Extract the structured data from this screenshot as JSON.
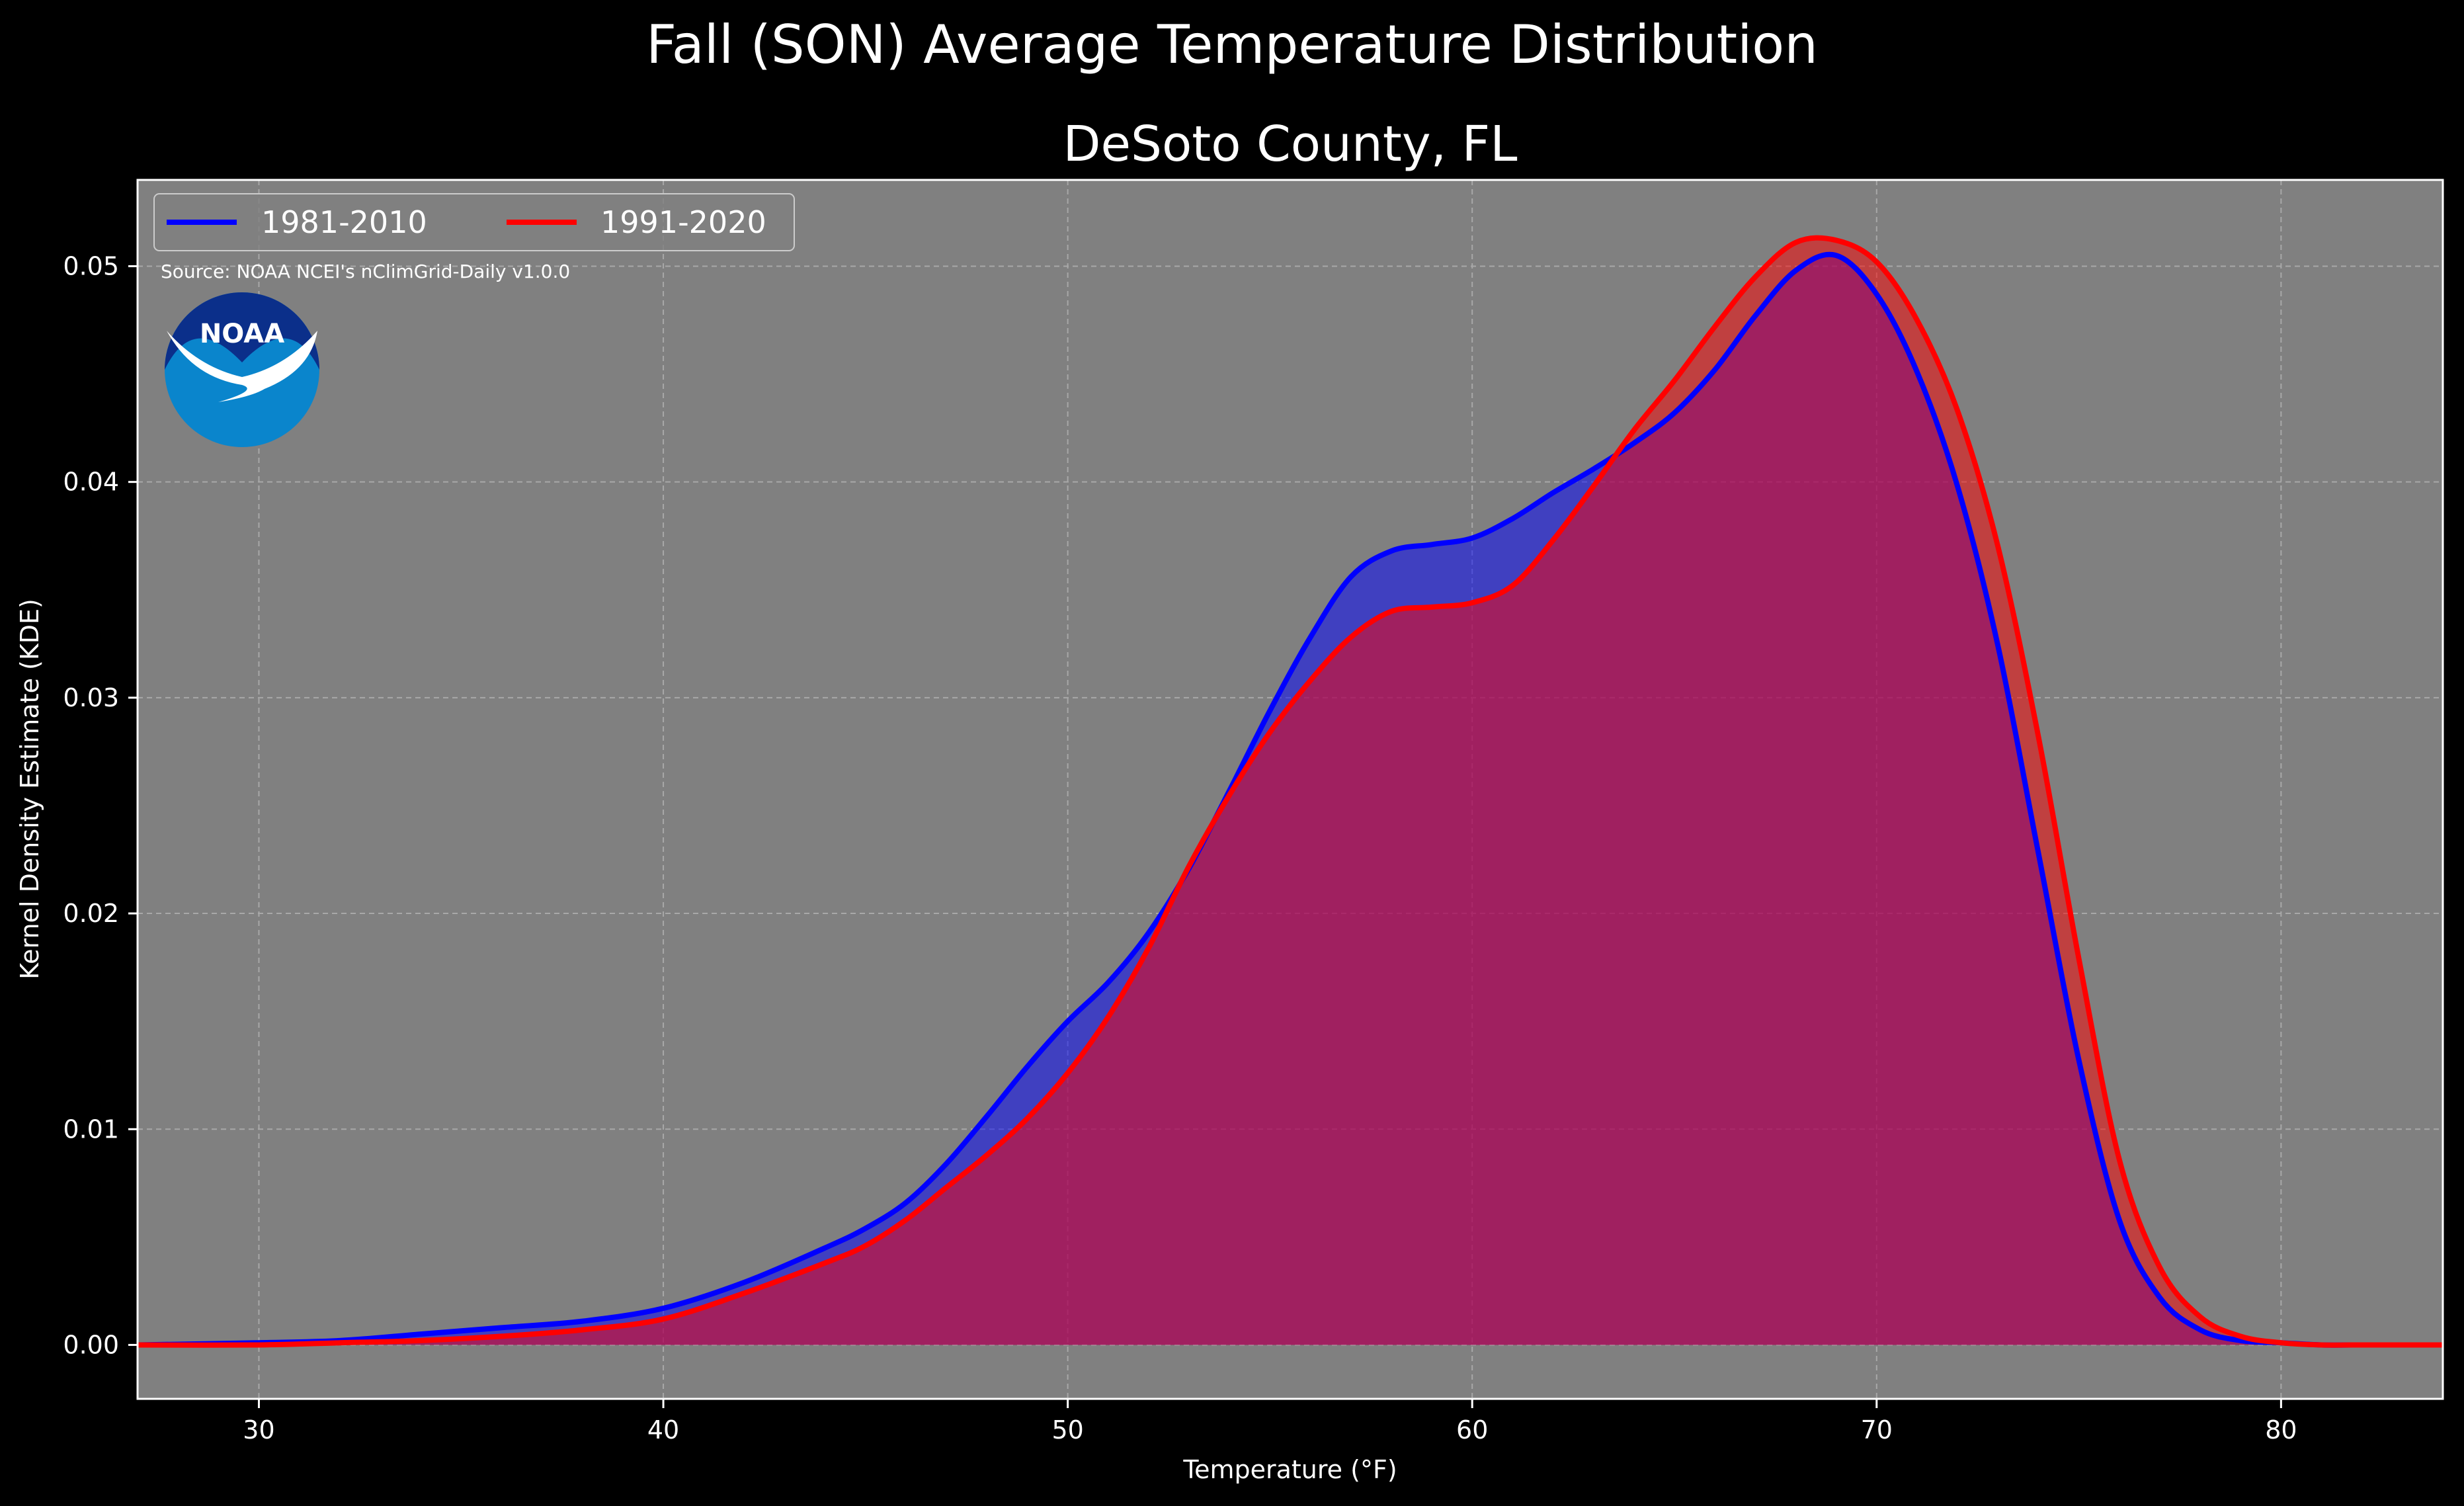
{
  "chart_data": {
    "type": "area",
    "suptitle": "Fall (SON) Average Temperature Distribution",
    "title": "DeSoto County, FL",
    "xlabel": "Temperature (°F)",
    "ylabel": "Kernel Density Estimate (KDE)",
    "xlim": [
      27,
      84
    ],
    "ylim": [
      -0.0025,
      0.054
    ],
    "xticks": [
      "30",
      "40",
      "50",
      "60",
      "70",
      "80"
    ],
    "yticks": [
      "0.00",
      "0.01",
      "0.02",
      "0.03",
      "0.04",
      "0.05"
    ],
    "grid": true,
    "legend_position": "top-left",
    "annotation": "Source: NOAA NCEI's nClimGrid-Daily v1.0.0",
    "logo": {
      "text": "NOAA",
      "icon": "noaa-logo"
    },
    "colors": {
      "figure_background": "#000000",
      "plot_background": "#808080",
      "grid": "#a8a8a8"
    },
    "series": [
      {
        "name": "1981-2010",
        "color": "#0000ff",
        "fill": "rgba(0,0,255,0.5)",
        "x": [
          27,
          30,
          32,
          34,
          36,
          38,
          40,
          42,
          44,
          45,
          46,
          47,
          48,
          49,
          50,
          51,
          52,
          53,
          54,
          55,
          56,
          57,
          58,
          59,
          60,
          61,
          62,
          63,
          64,
          65,
          66,
          67,
          68,
          69,
          70,
          71,
          72,
          73,
          74,
          75,
          76,
          77,
          78,
          79,
          80,
          81,
          82,
          84
        ],
        "y": [
          0.0,
          0.0001,
          0.0002,
          0.0005,
          0.0008,
          0.0011,
          0.0017,
          0.0029,
          0.0045,
          0.0054,
          0.0066,
          0.0084,
          0.0106,
          0.0129,
          0.015,
          0.0168,
          0.0191,
          0.0221,
          0.0257,
          0.0294,
          0.0328,
          0.0356,
          0.0368,
          0.0371,
          0.0374,
          0.0383,
          0.0395,
          0.0406,
          0.0418,
          0.0432,
          0.0452,
          0.0477,
          0.0498,
          0.0505,
          0.0487,
          0.0451,
          0.0398,
          0.0324,
          0.0228,
          0.0132,
          0.0058,
          0.0022,
          0.0007,
          0.0002,
          0.0001,
          0.0,
          0.0,
          0.0
        ]
      },
      {
        "name": "1991-2020",
        "color": "#ff0000",
        "fill": "rgba(255,0,0,0.5)",
        "x": [
          27,
          30,
          32,
          34,
          36,
          38,
          40,
          42,
          44,
          45,
          46,
          47,
          48,
          49,
          50,
          51,
          52,
          53,
          54,
          55,
          56,
          57,
          58,
          59,
          60,
          61,
          62,
          63,
          64,
          65,
          66,
          67,
          68,
          69,
          70,
          71,
          72,
          73,
          74,
          75,
          76,
          77,
          78,
          79,
          80,
          81,
          82,
          84
        ],
        "y": [
          0.0,
          0.0,
          0.0001,
          0.0002,
          0.0004,
          0.0007,
          0.0012,
          0.0024,
          0.0038,
          0.0046,
          0.0058,
          0.0073,
          0.0088,
          0.0105,
          0.0126,
          0.0152,
          0.0184,
          0.0222,
          0.0255,
          0.0284,
          0.0308,
          0.0328,
          0.034,
          0.0342,
          0.0344,
          0.0352,
          0.0373,
          0.0398,
          0.0424,
          0.0447,
          0.0472,
          0.0495,
          0.0511,
          0.0512,
          0.0502,
          0.0475,
          0.0433,
          0.037,
          0.0282,
          0.0179,
          0.0086,
          0.0036,
          0.0013,
          0.0004,
          0.0001,
          0.0,
          0.0,
          0.0
        ]
      }
    ]
  }
}
